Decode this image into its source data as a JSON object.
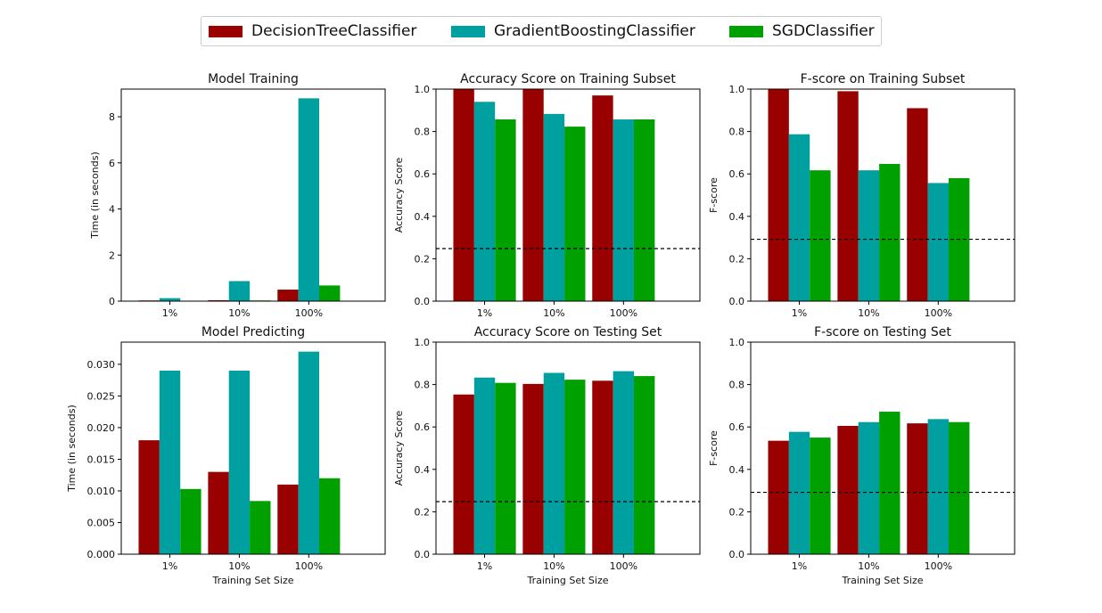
{
  "legend": [
    {
      "name": "DecisionTreeClassifier",
      "color": "#990000"
    },
    {
      "name": "GradientBoostingClassifier",
      "color": "#00A0A0"
    },
    {
      "name": "SGDClassifier",
      "color": "#00A000"
    }
  ],
  "chart_data": [
    {
      "type": "bar",
      "title": "Model Training",
      "xlabel": "",
      "ylabel": "Time (in seconds)",
      "categories": [
        "1%",
        "10%",
        "100%"
      ],
      "ylim": [
        0,
        9.2
      ],
      "yticks": [
        0,
        2,
        4,
        6,
        8
      ],
      "ytick_labels": [
        "0",
        "2",
        "4",
        "6",
        "8"
      ],
      "series": [
        {
          "name": "DecisionTreeClassifier",
          "values": [
            0.03,
            0.04,
            0.5
          ]
        },
        {
          "name": "GradientBoostingClassifier",
          "values": [
            0.13,
            0.87,
            8.8
          ]
        },
        {
          "name": "SGDClassifier",
          "values": [
            0.02,
            0.03,
            0.68
          ]
        }
      ]
    },
    {
      "type": "bar",
      "title": "Accuracy Score on Training Subset",
      "xlabel": "",
      "ylabel": "Accuracy Score",
      "categories": [
        "1%",
        "10%",
        "100%"
      ],
      "ylim": [
        0,
        1.0
      ],
      "yticks": [
        0,
        0.2,
        0.4,
        0.6,
        0.8,
        1.0
      ],
      "ytick_labels": [
        "0.0",
        "0.2",
        "0.4",
        "0.6",
        "0.8",
        "1.0"
      ],
      "baseline": 0.2478,
      "series": [
        {
          "name": "DecisionTreeClassifier",
          "values": [
            1.0,
            1.0,
            0.97
          ]
        },
        {
          "name": "GradientBoostingClassifier",
          "values": [
            0.94,
            0.883,
            0.857
          ]
        },
        {
          "name": "SGDClassifier",
          "values": [
            0.857,
            0.823,
            0.857
          ]
        }
      ]
    },
    {
      "type": "bar",
      "title": "F-score on Training Subset",
      "xlabel": "",
      "ylabel": "F-score",
      "categories": [
        "1%",
        "10%",
        "100%"
      ],
      "ylim": [
        0,
        1.0
      ],
      "yticks": [
        0,
        0.2,
        0.4,
        0.6,
        0.8,
        1.0
      ],
      "ytick_labels": [
        "0.0",
        "0.2",
        "0.4",
        "0.6",
        "0.8",
        "1.0"
      ],
      "baseline": 0.2917,
      "series": [
        {
          "name": "DecisionTreeClassifier",
          "values": [
            1.0,
            0.99,
            0.91
          ]
        },
        {
          "name": "GradientBoostingClassifier",
          "values": [
            0.787,
            0.617,
            0.557
          ]
        },
        {
          "name": "SGDClassifier",
          "values": [
            0.617,
            0.647,
            0.58
          ]
        }
      ]
    },
    {
      "type": "bar",
      "title": "Model Predicting",
      "xlabel": "Training Set Size",
      "ylabel": "Time (in seconds)",
      "categories": [
        "1%",
        "10%",
        "100%"
      ],
      "ylim": [
        0,
        0.0335
      ],
      "yticks": [
        0,
        0.005,
        0.01,
        0.015,
        0.02,
        0.025,
        0.03
      ],
      "ytick_labels": [
        "0.000",
        "0.005",
        "0.010",
        "0.015",
        "0.020",
        "0.025",
        "0.030"
      ],
      "series": [
        {
          "name": "DecisionTreeClassifier",
          "values": [
            0.018,
            0.013,
            0.011
          ]
        },
        {
          "name": "GradientBoostingClassifier",
          "values": [
            0.029,
            0.029,
            0.032
          ]
        },
        {
          "name": "SGDClassifier",
          "values": [
            0.0103,
            0.0084,
            0.012
          ]
        }
      ]
    },
    {
      "type": "bar",
      "title": "Accuracy Score on Testing Set",
      "xlabel": "Training Set Size",
      "ylabel": "Accuracy Score",
      "categories": [
        "1%",
        "10%",
        "100%"
      ],
      "ylim": [
        0,
        1.0
      ],
      "yticks": [
        0,
        0.2,
        0.4,
        0.6,
        0.8,
        1.0
      ],
      "ytick_labels": [
        "0.0",
        "0.2",
        "0.4",
        "0.6",
        "0.8",
        "1.0"
      ],
      "baseline": 0.2478,
      "series": [
        {
          "name": "DecisionTreeClassifier",
          "values": [
            0.753,
            0.803,
            0.818
          ]
        },
        {
          "name": "GradientBoostingClassifier",
          "values": [
            0.833,
            0.855,
            0.863
          ]
        },
        {
          "name": "SGDClassifier",
          "values": [
            0.808,
            0.823,
            0.84
          ]
        }
      ]
    },
    {
      "type": "bar",
      "title": "F-score on Testing Set",
      "xlabel": "Training Set Size",
      "ylabel": "F-score",
      "categories": [
        "1%",
        "10%",
        "100%"
      ],
      "ylim": [
        0,
        1.0
      ],
      "yticks": [
        0,
        0.2,
        0.4,
        0.6,
        0.8,
        1.0
      ],
      "ytick_labels": [
        "0.0",
        "0.2",
        "0.4",
        "0.6",
        "0.8",
        "1.0"
      ],
      "baseline": 0.2917,
      "series": [
        {
          "name": "DecisionTreeClassifier",
          "values": [
            0.535,
            0.605,
            0.617
          ]
        },
        {
          "name": "GradientBoostingClassifier",
          "values": [
            0.577,
            0.623,
            0.637
          ]
        },
        {
          "name": "SGDClassifier",
          "values": [
            0.55,
            0.672,
            0.623
          ]
        }
      ]
    }
  ]
}
